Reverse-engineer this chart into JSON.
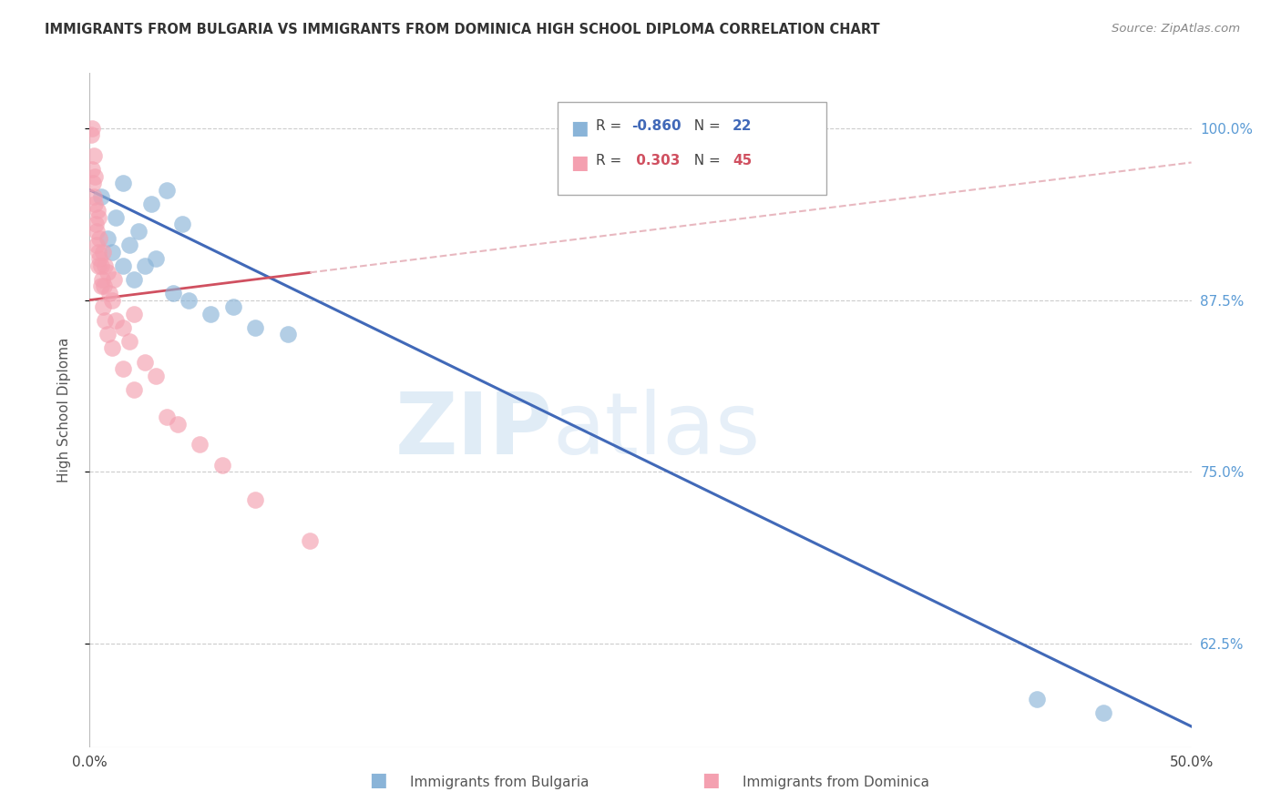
{
  "title": "IMMIGRANTS FROM BULGARIA VS IMMIGRANTS FROM DOMINICA HIGH SCHOOL DIPLOMA CORRELATION CHART",
  "source": "Source: ZipAtlas.com",
  "ylabel": "High School Diploma",
  "xlim": [
    0.0,
    50.0
  ],
  "ylim": [
    55.0,
    104.0
  ],
  "yticks": [
    62.5,
    75.0,
    87.5,
    100.0
  ],
  "ytick_labels": [
    "62.5%",
    "75.0%",
    "87.5%",
    "100.0%"
  ],
  "legend_R_bulgaria": "-0.860",
  "legend_N_bulgaria": "22",
  "legend_R_dominica": " 0.303",
  "legend_N_dominica": "45",
  "bulgaria_color": "#8ab4d8",
  "dominica_color": "#f4a0b0",
  "bulgaria_line_color": "#4169b8",
  "dominica_line_color": "#d05060",
  "dominica_dashed_color": "#e8b8c0",
  "watermark_zip": "ZIP",
  "watermark_atlas": "atlas",
  "bulgaria_x": [
    1.5,
    2.8,
    3.5,
    4.2,
    0.8,
    1.2,
    1.8,
    2.2,
    3.0,
    0.5,
    1.0,
    1.5,
    2.0,
    2.5,
    3.8,
    4.5,
    5.5,
    6.5,
    7.5,
    9.0,
    43.0,
    46.0
  ],
  "bulgaria_y": [
    96.0,
    94.5,
    95.5,
    93.0,
    92.0,
    93.5,
    91.5,
    92.5,
    90.5,
    95.0,
    91.0,
    90.0,
    89.0,
    90.0,
    88.0,
    87.5,
    86.5,
    87.0,
    85.5,
    85.0,
    58.5,
    57.5
  ],
  "dominica_x": [
    0.05,
    0.1,
    0.12,
    0.15,
    0.18,
    0.2,
    0.22,
    0.25,
    0.28,
    0.3,
    0.35,
    0.38,
    0.4,
    0.42,
    0.45,
    0.5,
    0.55,
    0.6,
    0.65,
    0.7,
    0.8,
    0.9,
    1.0,
    1.1,
    1.2,
    1.5,
    1.8,
    2.0,
    2.5,
    3.0,
    0.3,
    0.4,
    0.5,
    0.6,
    0.7,
    0.8,
    1.0,
    1.5,
    2.0,
    3.5,
    4.0,
    5.0,
    6.0,
    7.5,
    10.0
  ],
  "dominica_y": [
    99.5,
    100.0,
    97.0,
    96.0,
    98.0,
    95.0,
    94.5,
    96.5,
    93.0,
    92.5,
    94.0,
    91.0,
    93.5,
    90.5,
    92.0,
    90.0,
    89.0,
    91.0,
    88.5,
    90.0,
    89.5,
    88.0,
    87.5,
    89.0,
    86.0,
    85.5,
    84.5,
    86.5,
    83.0,
    82.0,
    91.5,
    90.0,
    88.5,
    87.0,
    86.0,
    85.0,
    84.0,
    82.5,
    81.0,
    79.0,
    78.5,
    77.0,
    75.5,
    73.0,
    70.0
  ],
  "bulgaria_line_x0": 0.0,
  "bulgaria_line_y0": 95.5,
  "bulgaria_line_x1": 50.0,
  "bulgaria_line_y1": 56.5,
  "dominica_solid_x0": 0.0,
  "dominica_solid_y0": 87.5,
  "dominica_solid_x1": 10.0,
  "dominica_solid_y1": 89.5,
  "dominica_dash_x0": 10.0,
  "dominica_dash_y0": 89.5,
  "dominica_dash_x1": 50.0,
  "dominica_dash_y1": 97.5
}
